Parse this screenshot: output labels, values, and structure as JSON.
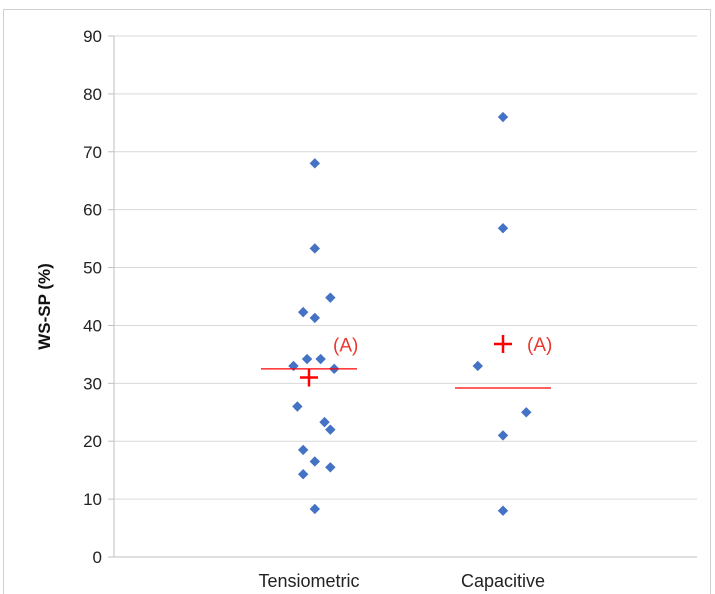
{
  "chart_data": {
    "type": "scatter",
    "title": "",
    "xlabel": "",
    "ylabel": "WS-SP (%)",
    "ylim": [
      0,
      90
    ],
    "yticks": [
      0,
      10,
      20,
      30,
      40,
      50,
      60,
      70,
      80,
      90
    ],
    "grid": true,
    "legend": "none",
    "categories": [
      "Tensiometric",
      "Capacitive"
    ],
    "series": [
      {
        "category": "Tensiometric",
        "points": [
          {
            "x": -0.08,
            "y": 33.0
          },
          {
            "x": -0.06,
            "y": 26.0
          },
          {
            "x": -0.03,
            "y": 42.3
          },
          {
            "x": -0.03,
            "y": 18.5
          },
          {
            "x": -0.03,
            "y": 14.3
          },
          {
            "x": -0.01,
            "y": 34.2
          },
          {
            "x": 0.03,
            "y": 68.0
          },
          {
            "x": 0.03,
            "y": 53.3
          },
          {
            "x": 0.03,
            "y": 41.3
          },
          {
            "x": 0.03,
            "y": 16.5
          },
          {
            "x": 0.03,
            "y": 8.3
          },
          {
            "x": 0.06,
            "y": 34.2
          },
          {
            "x": 0.08,
            "y": 23.3
          },
          {
            "x": 0.11,
            "y": 44.8
          },
          {
            "x": 0.11,
            "y": 22.0
          },
          {
            "x": 0.11,
            "y": 15.5
          },
          {
            "x": 0.13,
            "y": 32.5
          }
        ],
        "median": 32.5,
        "mean": 31.0,
        "annotation": "(A)"
      },
      {
        "category": "Capacitive",
        "points": [
          {
            "x": -0.13,
            "y": 33.0
          },
          {
            "x": 0.0,
            "y": 76.0
          },
          {
            "x": 0.0,
            "y": 56.8
          },
          {
            "x": 0.0,
            "y": 21.0
          },
          {
            "x": 0.0,
            "y": 8.0
          },
          {
            "x": 0.12,
            "y": 25.0
          }
        ],
        "median": 29.2,
        "mean": 36.8,
        "annotation": "(A)"
      }
    ],
    "colors": {
      "points": "#4472C4",
      "summary": "#FF0000",
      "annotation": "#E8382F",
      "grid": "#d9d9d9",
      "axis": "#bfbfbf"
    }
  }
}
